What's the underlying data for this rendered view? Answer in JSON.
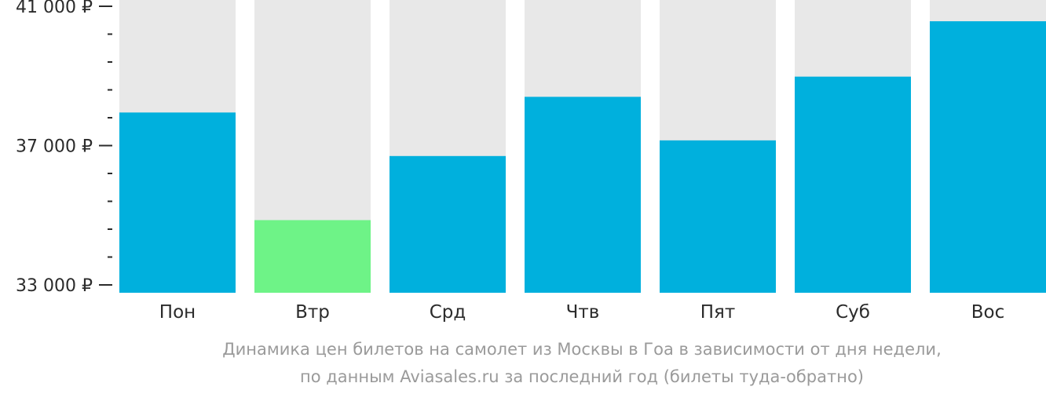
{
  "chart_data": {
    "type": "bar",
    "categories": [
      "Пон",
      "Втр",
      "Срд",
      "Чтв",
      "Пят",
      "Суб",
      "Вос"
    ],
    "values": [
      37950,
      34860,
      36700,
      38400,
      37150,
      38980,
      40570
    ],
    "highlight_index": 1,
    "ylim": [
      33000,
      41000
    ],
    "yticks": [
      {
        "value": 41000,
        "label": "41 000 ₽"
      },
      {
        "value": 37000,
        "label": "37 000 ₽"
      },
      {
        "value": 33000,
        "label": "33 000 ₽"
      }
    ],
    "minor_ticks": [
      33800,
      34600,
      35400,
      36200,
      37800,
      38600,
      39400,
      40200
    ],
    "colors": {
      "bar": "#00b0dd",
      "highlight": "#6ef387",
      "background_bar": "#e8e8e8",
      "axis": "#2b2b2b"
    },
    "caption_line1": "Динамика цен билетов на самолет из Москвы в Гоа в зависимости от дня недели,",
    "caption_line2": "по данным Aviasales.ru за последний год (билеты туда-обратно)"
  }
}
